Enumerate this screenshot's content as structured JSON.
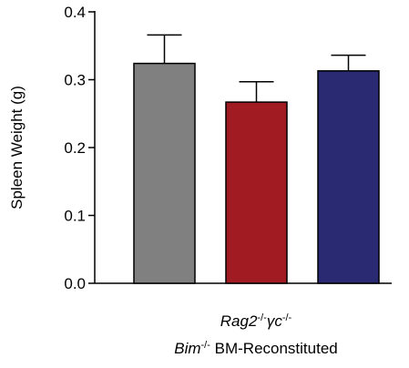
{
  "chart_data": {
    "type": "bar",
    "y_label": "Spleen Weight (g)",
    "x_label": [
      [
        {
          "text": "Rag2",
          "style": "italic"
        },
        {
          "text": "-/-",
          "style": "sup"
        },
        {
          "text": "γc",
          "style": "italic"
        },
        {
          "text": "-/-",
          "style": "sup"
        }
      ],
      [
        {
          "text": "Bim",
          "style": "italic"
        },
        {
          "text": "-/-",
          "style": "sup"
        },
        {
          "text": " BM-Reconstituted",
          "style": "normal"
        }
      ]
    ],
    "categories": [
      null,
      null,
      null
    ],
    "values": [
      0.324,
      0.267,
      0.313
    ],
    "errors": [
      0.042,
      0.03,
      0.023
    ],
    "colors": [
      "#808080",
      "#a01c22",
      "#2a2a72"
    ],
    "ylim": [
      0,
      0.4
    ],
    "yticks": [
      {
        "value": 0,
        "label": "0.0"
      },
      0.1,
      0.2,
      0.3,
      0.4
    ]
  }
}
